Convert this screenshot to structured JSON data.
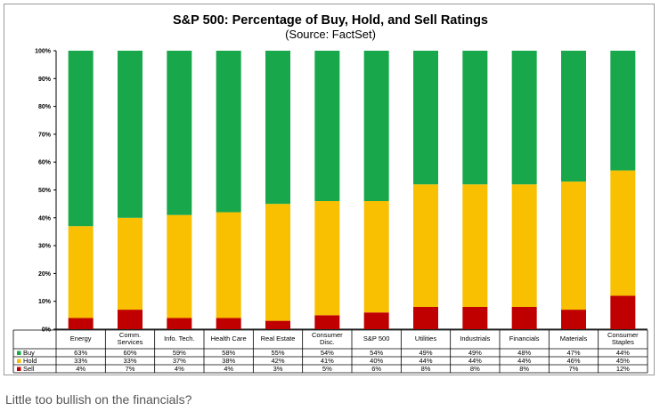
{
  "colors": {
    "buy": "#18a84b",
    "hold": "#f8c000",
    "sell": "#c00000"
  },
  "caption": "Little too bullish on the financials?",
  "chart_data": {
    "type": "bar",
    "stacked": true,
    "title": "S&P 500: Percentage of Buy, Hold, and Sell Ratings",
    "subtitle": "(Source: FactSet)",
    "ylim": [
      0,
      100
    ],
    "yticks": [
      "0%",
      "10%",
      "20%",
      "30%",
      "40%",
      "50%",
      "60%",
      "70%",
      "80%",
      "90%",
      "100%"
    ],
    "grid": false,
    "legend": "data-table",
    "categories": [
      [
        "Energy"
      ],
      [
        "Comm.",
        "Services"
      ],
      [
        "Info. Tech."
      ],
      [
        "Health Care"
      ],
      [
        "Real Estate"
      ],
      [
        "Consumer",
        "Disc."
      ],
      [
        "S&P 500"
      ],
      [
        "Utilities"
      ],
      [
        "Industrials"
      ],
      [
        "Financials"
      ],
      [
        "Materials"
      ],
      [
        "Consumer",
        "Staples"
      ]
    ],
    "series": [
      {
        "name": "Buy",
        "key": "buy",
        "values": [
          63,
          60,
          59,
          58,
          55,
          54,
          54,
          49,
          49,
          48,
          47,
          44
        ],
        "labels": [
          "63%",
          "60%",
          "59%",
          "58%",
          "55%",
          "54%",
          "54%",
          "49%",
          "49%",
          "48%",
          "47%",
          "44%"
        ]
      },
      {
        "name": "Hold",
        "key": "hold",
        "values": [
          33,
          33,
          37,
          38,
          42,
          41,
          40,
          44,
          44,
          44,
          46,
          45
        ],
        "labels": [
          "33%",
          "33%",
          "37%",
          "38%",
          "42%",
          "41%",
          "40%",
          "44%",
          "44%",
          "44%",
          "46%",
          "45%"
        ]
      },
      {
        "name": "Sell",
        "key": "sell",
        "values": [
          4,
          7,
          4,
          4,
          3,
          5,
          6,
          8,
          8,
          8,
          7,
          12
        ],
        "labels": [
          "4%",
          "7%",
          "4%",
          "4%",
          "3%",
          "5%",
          "6%",
          "8%",
          "8%",
          "8%",
          "7%",
          "12%"
        ]
      }
    ]
  }
}
